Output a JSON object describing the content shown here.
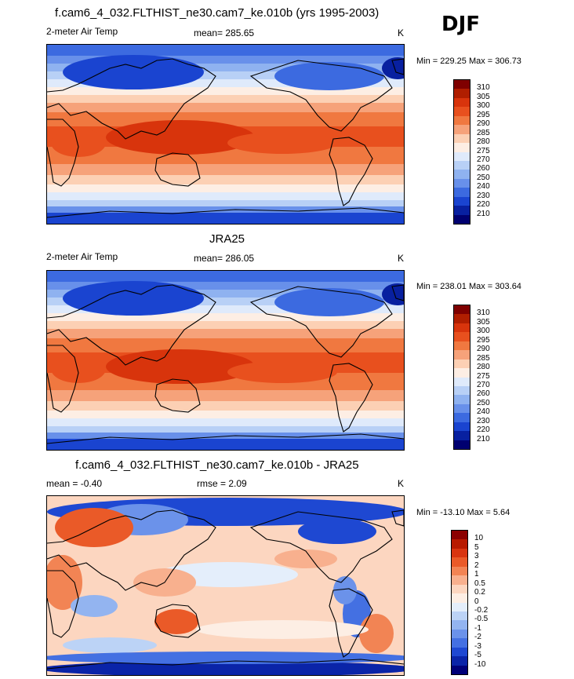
{
  "season": "DJF",
  "units": "K",
  "panels": [
    {
      "title": "f.cam6_4_032.FLTHIST_ne30.cam7_ke.010b (yrs 1995-2003)",
      "left_label": "2-meter Air Temp",
      "center_label": "mean= 285.65",
      "right_label": "K",
      "minmax": "Min = 229.25 Max = 306.73",
      "colorbar_levels": [
        "310",
        "305",
        "300",
        "295",
        "290",
        "285",
        "280",
        "275",
        "270",
        "260",
        "250",
        "240",
        "230",
        "220",
        "210"
      ]
    },
    {
      "title": "JRA25",
      "left_label": "2-meter Air Temp",
      "center_label": "mean= 286.05",
      "right_label": "K",
      "minmax": "Min = 238.01 Max = 303.64",
      "colorbar_levels": [
        "310",
        "305",
        "300",
        "295",
        "290",
        "285",
        "280",
        "275",
        "270",
        "260",
        "250",
        "240",
        "230",
        "220",
        "210"
      ]
    },
    {
      "title": "f.cam6_4_032.FLTHIST_ne30.cam7_ke.010b - JRA25",
      "left_label": "mean =  -0.40",
      "center_label": "rmse =   2.09",
      "right_label": "K",
      "minmax": "Min = -13.10 Max =   5.64",
      "colorbar_levels": [
        "10",
        "5",
        "3",
        "2",
        "1",
        "0.5",
        "0.2",
        "0",
        "-0.2",
        "-0.5",
        "-1",
        "-2",
        "-3",
        "-5",
        "-10"
      ]
    }
  ],
  "colors": {
    "abs_scale": [
      "#7f0000",
      "#b01e00",
      "#d8340c",
      "#e8501e",
      "#f07840",
      "#f6a27a",
      "#fcd0b4",
      "#fdeee4",
      "#dfeafb",
      "#b8d0f6",
      "#8fb2f0",
      "#6890ea",
      "#3c6ae0",
      "#1a44d0",
      "#0820a0",
      "#000070"
    ],
    "diff_scale": [
      "#8b0000",
      "#b81a00",
      "#d93510",
      "#ea5a28",
      "#f28454",
      "#f8b08e",
      "#fcd6c0",
      "#fdeee4",
      "#e4eefb",
      "#bcd3f6",
      "#93b4f0",
      "#6b92ea",
      "#4470e2",
      "#1e48d2",
      "#0a24a8",
      "#000078"
    ]
  }
}
